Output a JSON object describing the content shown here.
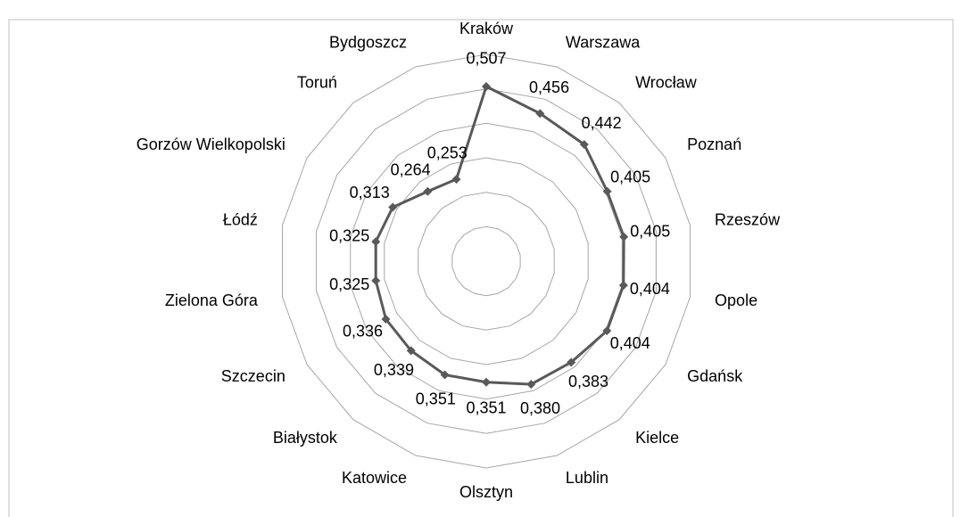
{
  "chart_data": {
    "type": "radar",
    "categories": [
      "Kraków",
      "Warszawa",
      "Wrocław",
      "Poznań",
      "Rzeszów",
      "Opole",
      "Gdańsk",
      "Kielce",
      "Lublin",
      "Olsztyn",
      "Katowice",
      "Białystok",
      "Szczecin",
      "Zielona Góra",
      "Łódź",
      "Gorzów Wielkopolski",
      "Toruń",
      "Bydgoszcz"
    ],
    "values": [
      0.507,
      0.456,
      0.442,
      0.405,
      0.405,
      0.404,
      0.404,
      0.383,
      0.38,
      0.351,
      0.351,
      0.339,
      0.336,
      0.325,
      0.325,
      0.313,
      0.264,
      0.253
    ],
    "value_labels": [
      "0,507",
      "0,456",
      "0,442",
      "0,405",
      "0,405",
      "0,404",
      "0,404",
      "0,383",
      "0,380",
      "0,351",
      "0,351",
      "0,339",
      "0,336",
      "0,325",
      "0,325",
      "0,313",
      "0,264",
      "0,253"
    ],
    "color": "#595959",
    "rlim": [
      0,
      0.6
    ],
    "rticks": [
      0,
      0.1,
      0.2,
      0.3,
      0.4,
      0.5,
      0.6
    ],
    "grid": true
  }
}
